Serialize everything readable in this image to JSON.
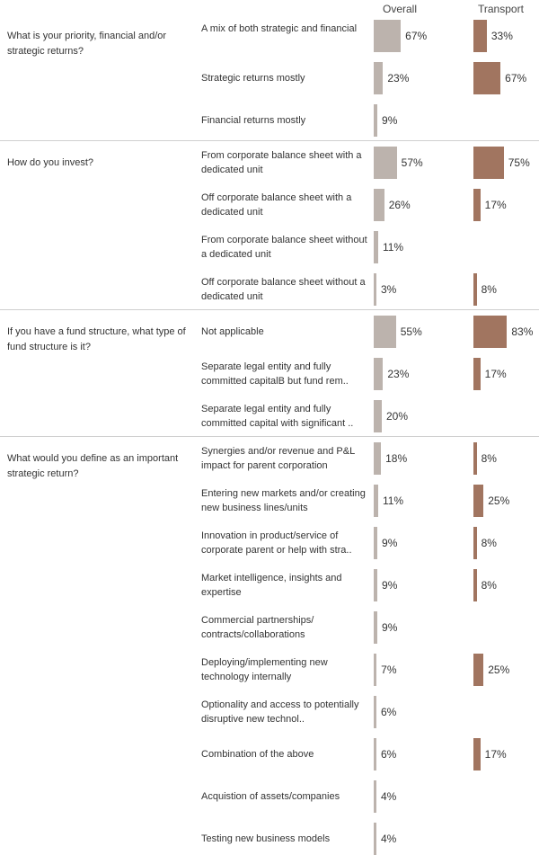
{
  "chart_data": {
    "type": "bar",
    "orientation": "horizontal",
    "series": [
      {
        "name": "Overall",
        "color": "#bcb3ad"
      },
      {
        "name": "Transport",
        "color": "#a17560"
      }
    ],
    "xlim": [
      0,
      100
    ],
    "questions": [
      {
        "question": "What is your priority, financial and/or strategic returns?",
        "answers": [
          {
            "label": "A mix of both strategic and financial",
            "overall": 67,
            "transport": 33
          },
          {
            "label": "Strategic returns mostly",
            "overall": 23,
            "transport": 67
          },
          {
            "label": "Financial returns mostly",
            "overall": 9,
            "transport": null
          }
        ]
      },
      {
        "question": "How do you invest?",
        "answers": [
          {
            "label": "From corporate balance sheet with a dedicated unit",
            "overall": 57,
            "transport": 75
          },
          {
            "label": "Off corporate balance sheet with a dedicated unit",
            "overall": 26,
            "transport": 17
          },
          {
            "label": "From corporate balance sheet without a dedicated unit",
            "overall": 11,
            "transport": null
          },
          {
            "label": "Off corporate balance sheet without a dedicated unit",
            "overall": 3,
            "transport": 8
          }
        ]
      },
      {
        "question": "If you have a fund structure, what type of fund structure is it?",
        "answers": [
          {
            "label": "Not applicable",
            "overall": 55,
            "transport": 83
          },
          {
            "label": "Separate legal entity and fully committed capitalB  but fund rem..",
            "overall": 23,
            "transport": 17
          },
          {
            "label": "Separate legal entity and fully committed capital with significant ..",
            "overall": 20,
            "transport": null
          }
        ]
      },
      {
        "question": "What would you define as an important strategic return?",
        "answers": [
          {
            "label": "Synergies and/or revenue and P&L impact for parent corporation",
            "overall": 18,
            "transport": 8
          },
          {
            "label": "Entering new markets and/or creating new business lines/units",
            "overall": 11,
            "transport": 25
          },
          {
            "label": "Innovation in product/service of corporate parent or help with stra..",
            "overall": 9,
            "transport": 8
          },
          {
            "label": "Market intelligence, insights and expertise",
            "overall": 9,
            "transport": 8
          },
          {
            "label": "Commercial partnerships/ contracts/collaborations",
            "overall": 9,
            "transport": null
          },
          {
            "label": "Deploying/implementing new technology internally",
            "overall": 7,
            "transport": 25
          },
          {
            "label": "Optionality and access to potentially disruptive new technol..",
            "overall": 6,
            "transport": null
          },
          {
            "label": "Combination of the above",
            "overall": 6,
            "transport": 17
          },
          {
            "label": "Acquistion of assets/companies",
            "overall": 4,
            "transport": null
          },
          {
            "label": "Testing new business models",
            "overall": 4,
            "transport": null
          }
        ]
      }
    ]
  }
}
